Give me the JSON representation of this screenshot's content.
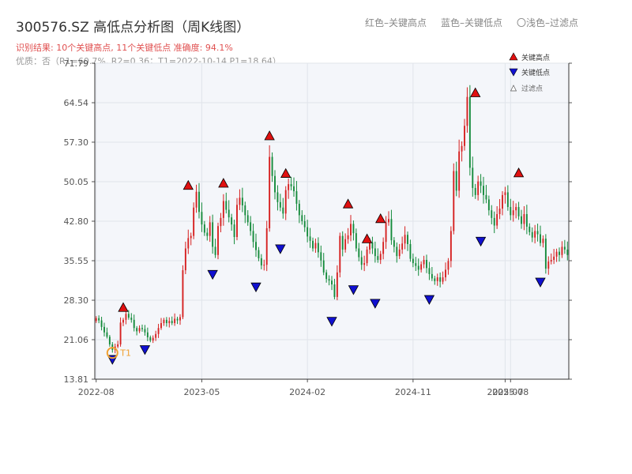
{
  "header": {
    "title": "300576.SZ 高低点分析图（周K线图）",
    "legend_red": "红色–关键高点",
    "legend_blue": "蓝色–关键低点",
    "legend_filtered": "〇浅色–过滤点",
    "result_line": "识别结果: 10个关键高点, 11个关键低点  准确度: 94.1%",
    "quality_line": "优质：否（R1=60.7%, R2=0.36；T1=2022-10-14 P1=18.64）"
  },
  "colors": {
    "up": "#d62020",
    "down": "#138a3a",
    "high_marker": "#e01010",
    "low_marker": "#1010d0",
    "t1_marker": "#f0a030",
    "plot_bg": "#f4f6fa",
    "grid": "#e0e4ea"
  },
  "chart_data": {
    "type": "candlestick",
    "title": "300576.SZ 高低点分析图（周K线图）",
    "y_ticks": [
      "13.81",
      "21.06",
      "28.30",
      "35.55",
      "42.80",
      "50.05",
      "57.30",
      "64.54",
      "71.79"
    ],
    "ylim": [
      13.81,
      71.79
    ],
    "x_ticks": [
      {
        "label": "2022-08",
        "index": 0
      },
      {
        "label": "2023-05",
        "index": 39
      },
      {
        "label": "2024-02",
        "index": 78
      },
      {
        "label": "2024-11",
        "index": 117
      },
      {
        "label": "2025-07",
        "index": 151
      },
      {
        "label": "2025-08",
        "index": 153
      }
    ],
    "grid": true,
    "legend": {
      "position": "top-right",
      "entries": [
        "关键高点",
        "关键低点",
        "过滤点"
      ]
    },
    "t1": {
      "index": 6,
      "price": 18.64,
      "label": "T1"
    },
    "closes": [
      25.0,
      24.6,
      23.4,
      22.4,
      21.6,
      20.2,
      19.2,
      19.8,
      20.2,
      24.2,
      24.7,
      25.8,
      25.1,
      24.7,
      23.2,
      22.6,
      23.2,
      23.0,
      22.4,
      21.5,
      20.9,
      21.4,
      22.1,
      23.2,
      24.1,
      24.7,
      24.1,
      24.5,
      24.1,
      24.9,
      24.6,
      25.2,
      33.8,
      37.8,
      39.7,
      40.1,
      45.3,
      48.2,
      44.5,
      42.2,
      40.7,
      40.1,
      42.6,
      38.1,
      36.6,
      41.9,
      43.4,
      46.5,
      44.9,
      43.5,
      42.2,
      39.9,
      45.8,
      47.1,
      45.7,
      43.9,
      42.6,
      41.0,
      39.0,
      37.5,
      36.0,
      34.7,
      34.8,
      41.5,
      54.6,
      51.1,
      48.1,
      46.3,
      45.3,
      44.2,
      48.5,
      49.6,
      49.2,
      48.3,
      46.0,
      43.9,
      42.8,
      41.7,
      40.0,
      39.2,
      37.8,
      38.8,
      37.1,
      35.6,
      33.4,
      32.2,
      31.9,
      31.2,
      28.9,
      33.4,
      40.1,
      37.6,
      39.5,
      40.2,
      42.3,
      40.6,
      37.8,
      36.2,
      34.8,
      35.1,
      37.6,
      38.9,
      37.8,
      36.4,
      35.7,
      36.8,
      39.0,
      42.6,
      43.2,
      39.3,
      38.1,
      36.4,
      37.6,
      38.7,
      40.3,
      38.6,
      35.9,
      35.1,
      34.6,
      33.9,
      34.9,
      35.7,
      34.2,
      33.1,
      32.3,
      31.8,
      32.5,
      31.7,
      32.5,
      33.9,
      35.5,
      41.0,
      52.0,
      48.4,
      55.6,
      56.6,
      60.3,
      65.6,
      52.6,
      48.9,
      47.6,
      50.1,
      49.3,
      47.6,
      46.8,
      44.8,
      43.4,
      42.0,
      44.1,
      45.1,
      47.6,
      48.1,
      45.4,
      43.9,
      44.8,
      45.4,
      43.7,
      42.3,
      44.1,
      41.8,
      40.8,
      39.8,
      41.0,
      40.4,
      38.8,
      39.6,
      34.1,
      35.4,
      35.7,
      36.3,
      37.2,
      36.6,
      38.1,
      37.6,
      36.6
    ],
    "key_highs": [
      {
        "index": 10,
        "price": 25.8
      },
      {
        "index": 34,
        "price": 48.2
      },
      {
        "index": 47,
        "price": 48.6
      },
      {
        "index": 64,
        "price": 57.3
      },
      {
        "index": 70,
        "price": 50.4
      },
      {
        "index": 93,
        "price": 44.8
      },
      {
        "index": 100,
        "price": 38.4
      },
      {
        "index": 105,
        "price": 42.1
      },
      {
        "index": 140,
        "price": 65.2
      },
      {
        "index": 156,
        "price": 50.5
      }
    ],
    "key_lows": [
      {
        "index": 6,
        "price": 18.6
      },
      {
        "index": 18,
        "price": 20.4
      },
      {
        "index": 43,
        "price": 34.2
      },
      {
        "index": 59,
        "price": 31.9
      },
      {
        "index": 68,
        "price": 38.9
      },
      {
        "index": 87,
        "price": 25.6
      },
      {
        "index": 95,
        "price": 31.4
      },
      {
        "index": 103,
        "price": 28.9
      },
      {
        "index": 123,
        "price": 29.6
      },
      {
        "index": 142,
        "price": 40.3
      },
      {
        "index": 164,
        "price": 32.8
      }
    ]
  }
}
